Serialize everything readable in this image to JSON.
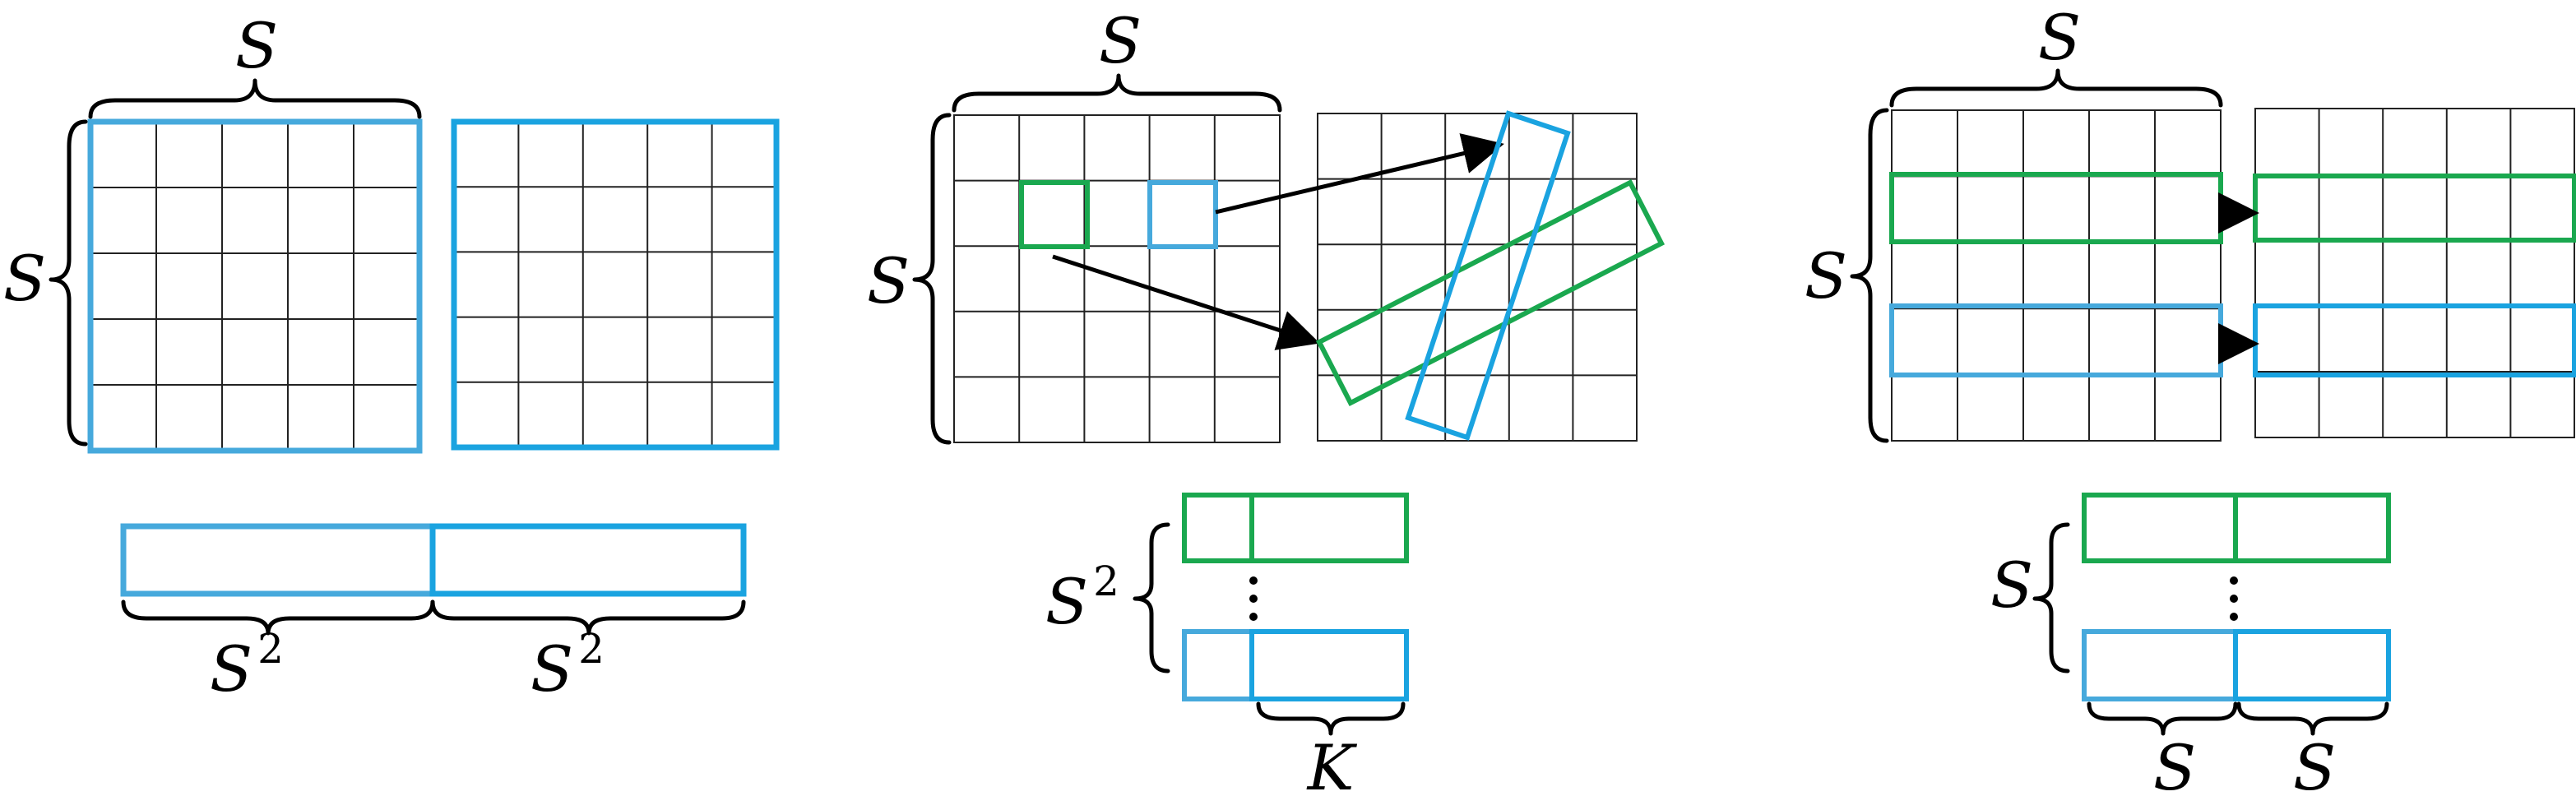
{
  "colors": {
    "green": "#1aa84f",
    "blue_light": "#46a9dc",
    "blue": "#1aa3e0",
    "grid_line": "#222222",
    "arrow": "#000000"
  },
  "labels": {
    "S": "S",
    "S2_base": "S",
    "S2_exp": "2",
    "K": "K"
  },
  "panels": [
    {
      "id": "panel-1",
      "grid_size": 5
    },
    {
      "id": "panel-2",
      "grid_size": 5
    },
    {
      "id": "panel-3",
      "grid_size": 5
    }
  ]
}
